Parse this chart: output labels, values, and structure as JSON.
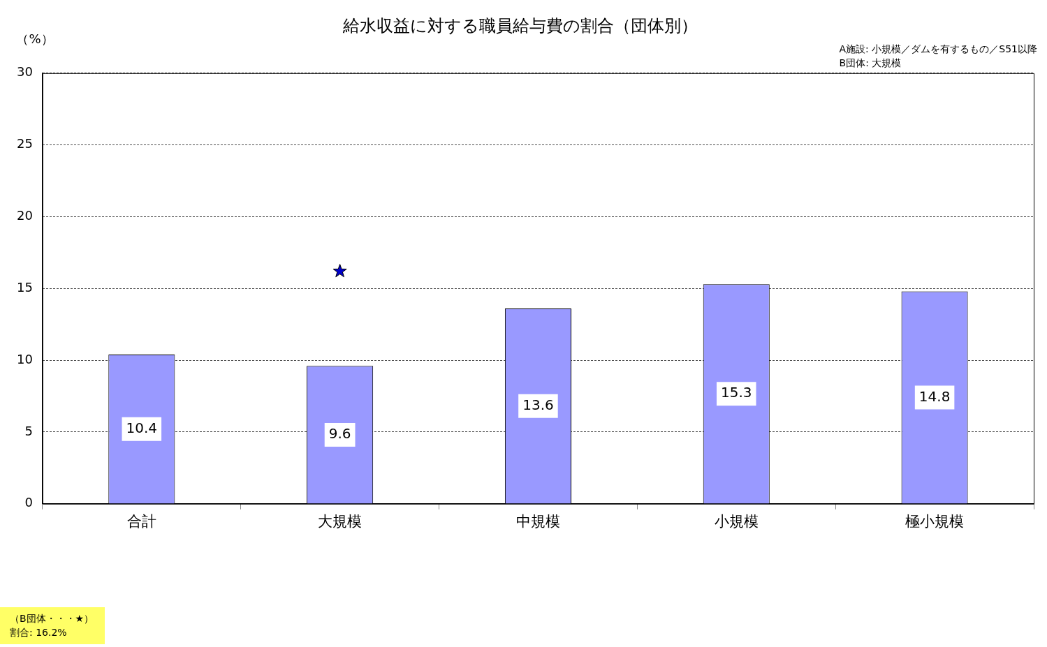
{
  "chart_data": {
    "type": "bar",
    "title": "給水収益に対する職員給与費の割合（団体別）",
    "ylabel": "（%）",
    "categories": [
      "合計",
      "大規模",
      "中規模",
      "小規模",
      "極小規模"
    ],
    "series": [
      {
        "color": "#9999ff",
        "values": [
          10.4,
          9.6,
          13.6,
          15.3,
          14.8
        ],
        "value_labels": [
          "10.4",
          "9.6",
          "13.6",
          "15.3",
          "14.8"
        ]
      },
      {
        "type": "scatter",
        "color": "#0000cc",
        "marker": "star",
        "x": [
          "大規模"
        ],
        "values": [
          16.2
        ]
      }
    ],
    "ylim": [
      0,
      30
    ],
    "yticks": [
      0,
      5,
      10,
      15,
      20,
      25,
      30
    ],
    "grid": "y",
    "legend": false,
    "annotations": [
      "A施設: 小規模／ダムを有するもの／S51以降",
      "B団体: 大規模",
      "（B団体・・・★）",
      "割合: 16.2%"
    ]
  }
}
